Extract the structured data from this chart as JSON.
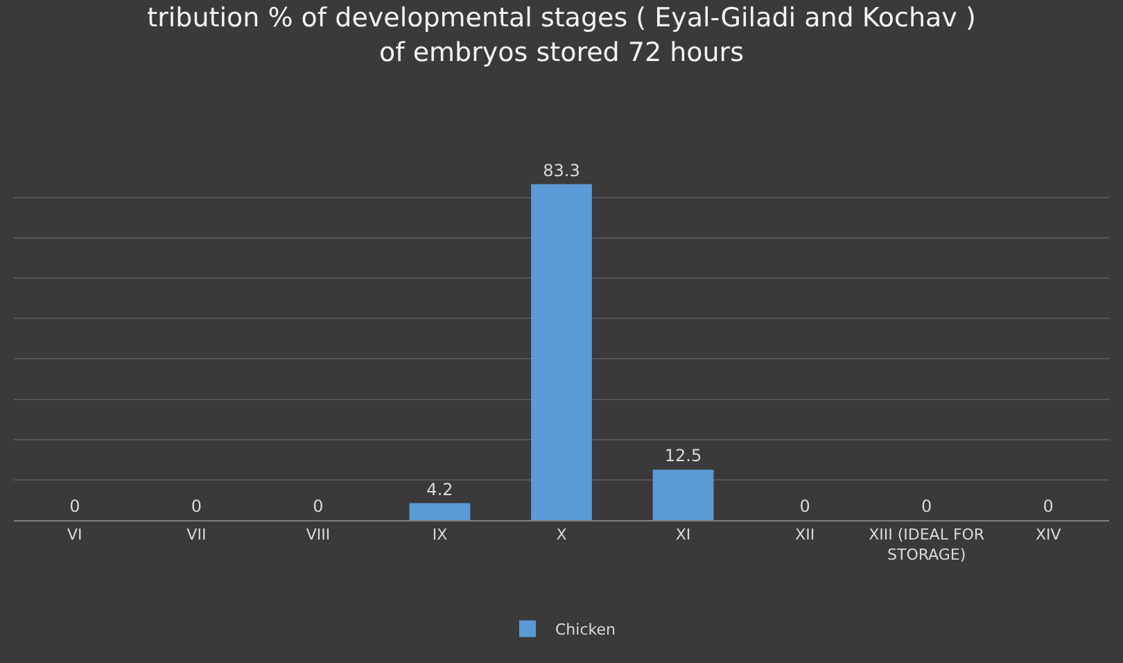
{
  "chart_data": {
    "type": "bar",
    "title": "tribution % of developmental stages ( Eyal-Giladi and Kochav )\nof embryos stored 72 hours",
    "categories": [
      "VI",
      "VII",
      "VIII",
      "IX",
      "X",
      "XI",
      "XII",
      "XIII (IDEAL FOR\nSTORAGE)",
      "XIV"
    ],
    "series": [
      {
        "name": "Chicken",
        "color": "#5b9bd5",
        "values": [
          0,
          0,
          0,
          4.2,
          83.3,
          12.5,
          0,
          0,
          0
        ]
      }
    ],
    "yticks": [
      {
        "value": 0,
        "label": null
      },
      {
        "value": 10,
        "label": null
      },
      {
        "value": 20,
        "label": null
      },
      {
        "value": 30,
        "label": null
      },
      {
        "value": 40,
        "label": null
      },
      {
        "value": 50,
        "label": null
      },
      {
        "value": 60,
        "label": null
      },
      {
        "value": 70,
        "label": null
      },
      {
        "value": 80,
        "label": null
      }
    ],
    "grid": "y",
    "data_labels": true,
    "legend": "bottom",
    "tick_labels": "x"
  }
}
